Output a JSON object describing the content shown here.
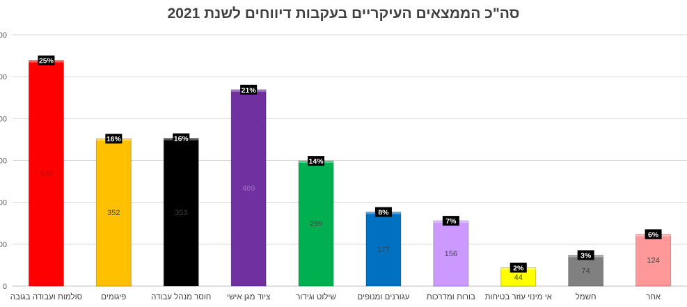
{
  "chart_data": {
    "type": "bar",
    "title": "סה\"כ הממצאים העיקריים בעקבות דיווחים לשנת 2021",
    "xlabel": "",
    "ylabel": "",
    "ylim": [
      0,
      600
    ],
    "y_ticks": [
      "00",
      "00",
      "00",
      "00",
      "00",
      "00",
      "0"
    ],
    "grid": true,
    "categories": [
      "סולמות ועבודה בגובה",
      "פיגומים",
      "חוסר מנהל עבודה",
      "ציוד מגן אישי",
      "שילוט וגידור",
      "עגורנים ומנופים",
      "בורות ומדרכות",
      "אי מינוי עוזר בטיחות",
      "חשמל",
      "אחר"
    ],
    "values": [
      539,
      352,
      353,
      469,
      299,
      177,
      156,
      44,
      74,
      124
    ],
    "value_labels": [
      "539",
      "352",
      "353",
      "469",
      "299",
      "177",
      "156",
      "44",
      "74",
      "124"
    ],
    "percent_labels": [
      "25%",
      "16%",
      "16%",
      "21%",
      "14%",
      "8%",
      "7%",
      "2%",
      "3%",
      "6%"
    ],
    "colors": [
      "#ff0000",
      "#ffc000",
      "#000000",
      "#7030a0",
      "#00b050",
      "#0070c0",
      "#cc99ff",
      "#ffff00",
      "#808080",
      "#ff9999"
    ],
    "value_label_colors": [
      "#c00000",
      "#404040",
      "#404040",
      "#9a6fc0",
      "#404040",
      "#404040",
      "#404040",
      "#404040",
      "#404040",
      "#404040"
    ]
  }
}
